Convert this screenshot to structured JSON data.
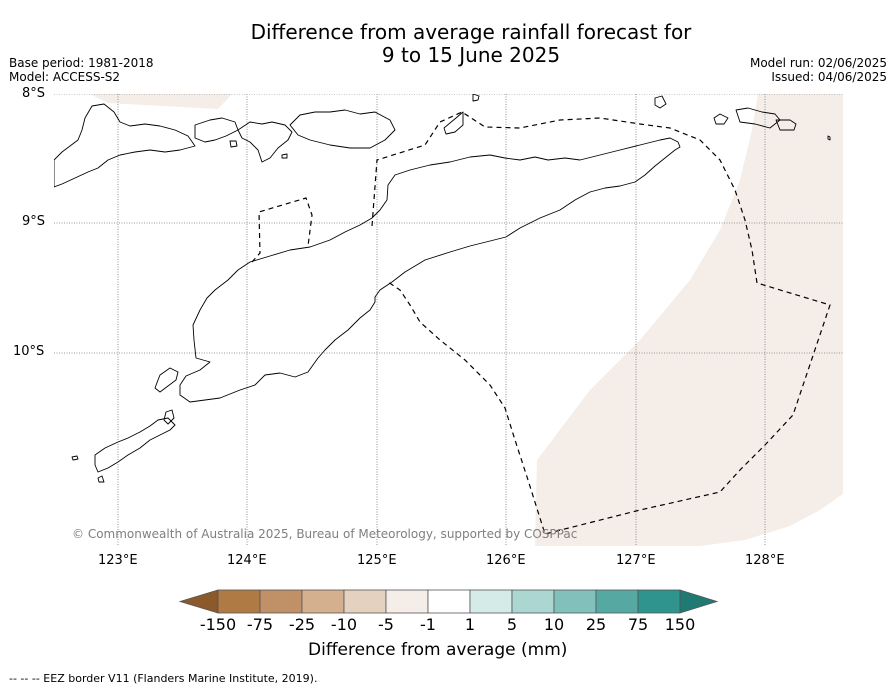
{
  "title": {
    "line1": "Difference from average rainfall forecast for",
    "line2": "9 to 15 June 2025"
  },
  "meta_left": {
    "base_period": "Base period: 1981-2018",
    "model": "Model: ACCESS-S2"
  },
  "meta_right": {
    "model_run": "Model run: 02/06/2025",
    "issued": "Issued: 04/06/2025"
  },
  "map": {
    "lat_labels": [
      "8°S",
      "9°S",
      "10°S"
    ],
    "lon_labels": [
      "123°E",
      "124°E",
      "125°E",
      "126°E",
      "127°E",
      "128°E"
    ],
    "extent": {
      "lon_min": 122.5,
      "lon_max": 128.6,
      "lat_min": -11.5,
      "lat_max": -8.0
    },
    "copyright": "© Commonwealth of Australia 2025, Bureau of Meteorology, supported by COSPPac",
    "fill_colors": {
      "land_outline": "#000000",
      "anomaly_-5_-1": "#f5ede8",
      "gridline": "#808080"
    }
  },
  "colorbar": {
    "label": "Difference from average (mm)",
    "ticks": [
      "-150",
      "-75",
      "-25",
      "-10",
      "-5",
      "-1",
      "1",
      "5",
      "10",
      "25",
      "75",
      "150"
    ],
    "colors": [
      "#8c5a2a",
      "#b07a45",
      "#c09067",
      "#d4b08e",
      "#e5d1bf",
      "#f5ede8",
      "#ffffff",
      "#d5ebe8",
      "#acd6d2",
      "#82c1bb",
      "#56a9a3",
      "#2e948d",
      "#1f7a74"
    ]
  },
  "footnote": "--  --  -- EEZ border V11 (Flanders Marine Institute, 2019)."
}
